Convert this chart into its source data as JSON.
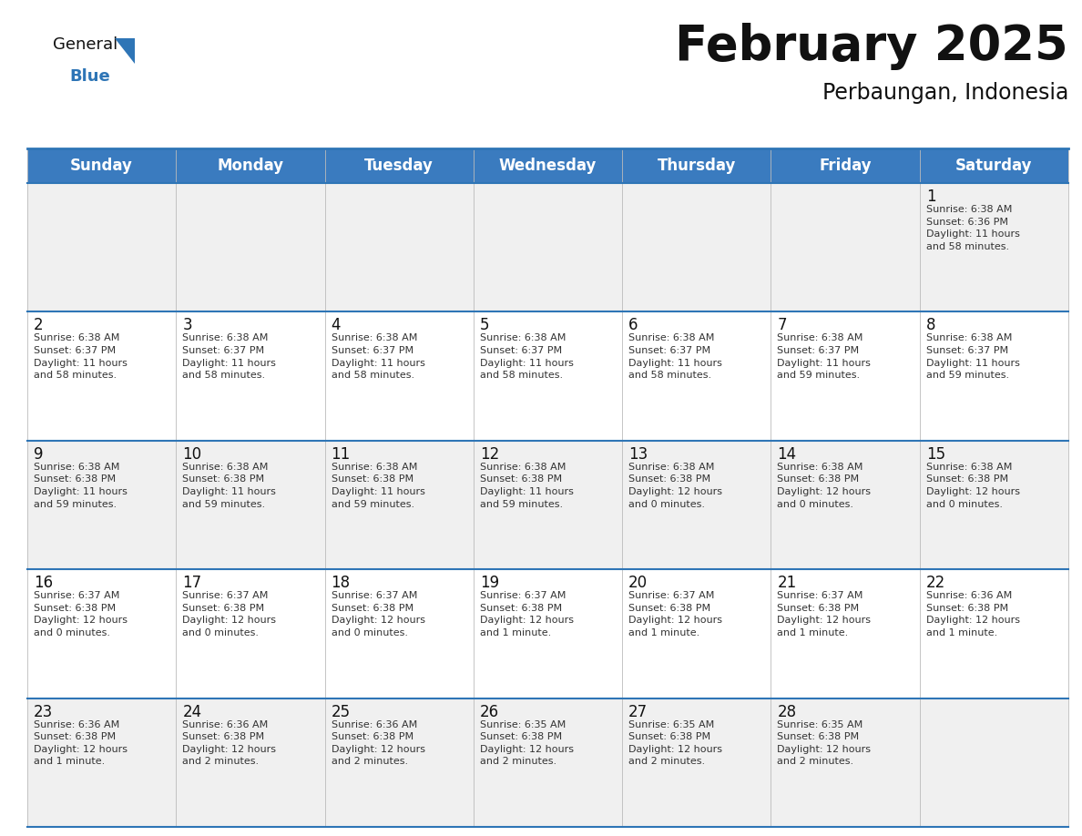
{
  "title": "February 2025",
  "subtitle": "Perbaungan, Indonesia",
  "header_bg": "#3a7bbf",
  "header_text_color": "#FFFFFF",
  "cell_bg": "#f0f0f0",
  "cell_bg_white": "#FFFFFF",
  "border_color": "#2E75B6",
  "row_line_color": "#2E75B6",
  "days_of_week": [
    "Sunday",
    "Monday",
    "Tuesday",
    "Wednesday",
    "Thursday",
    "Friday",
    "Saturday"
  ],
  "weeks": [
    [
      {
        "day": "",
        "text": ""
      },
      {
        "day": "",
        "text": ""
      },
      {
        "day": "",
        "text": ""
      },
      {
        "day": "",
        "text": ""
      },
      {
        "day": "",
        "text": ""
      },
      {
        "day": "",
        "text": ""
      },
      {
        "day": "1",
        "text": "Sunrise: 6:38 AM\nSunset: 6:36 PM\nDaylight: 11 hours\nand 58 minutes."
      }
    ],
    [
      {
        "day": "2",
        "text": "Sunrise: 6:38 AM\nSunset: 6:37 PM\nDaylight: 11 hours\nand 58 minutes."
      },
      {
        "day": "3",
        "text": "Sunrise: 6:38 AM\nSunset: 6:37 PM\nDaylight: 11 hours\nand 58 minutes."
      },
      {
        "day": "4",
        "text": "Sunrise: 6:38 AM\nSunset: 6:37 PM\nDaylight: 11 hours\nand 58 minutes."
      },
      {
        "day": "5",
        "text": "Sunrise: 6:38 AM\nSunset: 6:37 PM\nDaylight: 11 hours\nand 58 minutes."
      },
      {
        "day": "6",
        "text": "Sunrise: 6:38 AM\nSunset: 6:37 PM\nDaylight: 11 hours\nand 58 minutes."
      },
      {
        "day": "7",
        "text": "Sunrise: 6:38 AM\nSunset: 6:37 PM\nDaylight: 11 hours\nand 59 minutes."
      },
      {
        "day": "8",
        "text": "Sunrise: 6:38 AM\nSunset: 6:37 PM\nDaylight: 11 hours\nand 59 minutes."
      }
    ],
    [
      {
        "day": "9",
        "text": "Sunrise: 6:38 AM\nSunset: 6:38 PM\nDaylight: 11 hours\nand 59 minutes."
      },
      {
        "day": "10",
        "text": "Sunrise: 6:38 AM\nSunset: 6:38 PM\nDaylight: 11 hours\nand 59 minutes."
      },
      {
        "day": "11",
        "text": "Sunrise: 6:38 AM\nSunset: 6:38 PM\nDaylight: 11 hours\nand 59 minutes."
      },
      {
        "day": "12",
        "text": "Sunrise: 6:38 AM\nSunset: 6:38 PM\nDaylight: 11 hours\nand 59 minutes."
      },
      {
        "day": "13",
        "text": "Sunrise: 6:38 AM\nSunset: 6:38 PM\nDaylight: 12 hours\nand 0 minutes."
      },
      {
        "day": "14",
        "text": "Sunrise: 6:38 AM\nSunset: 6:38 PM\nDaylight: 12 hours\nand 0 minutes."
      },
      {
        "day": "15",
        "text": "Sunrise: 6:38 AM\nSunset: 6:38 PM\nDaylight: 12 hours\nand 0 minutes."
      }
    ],
    [
      {
        "day": "16",
        "text": "Sunrise: 6:37 AM\nSunset: 6:38 PM\nDaylight: 12 hours\nand 0 minutes."
      },
      {
        "day": "17",
        "text": "Sunrise: 6:37 AM\nSunset: 6:38 PM\nDaylight: 12 hours\nand 0 minutes."
      },
      {
        "day": "18",
        "text": "Sunrise: 6:37 AM\nSunset: 6:38 PM\nDaylight: 12 hours\nand 0 minutes."
      },
      {
        "day": "19",
        "text": "Sunrise: 6:37 AM\nSunset: 6:38 PM\nDaylight: 12 hours\nand 1 minute."
      },
      {
        "day": "20",
        "text": "Sunrise: 6:37 AM\nSunset: 6:38 PM\nDaylight: 12 hours\nand 1 minute."
      },
      {
        "day": "21",
        "text": "Sunrise: 6:37 AM\nSunset: 6:38 PM\nDaylight: 12 hours\nand 1 minute."
      },
      {
        "day": "22",
        "text": "Sunrise: 6:36 AM\nSunset: 6:38 PM\nDaylight: 12 hours\nand 1 minute."
      }
    ],
    [
      {
        "day": "23",
        "text": "Sunrise: 6:36 AM\nSunset: 6:38 PM\nDaylight: 12 hours\nand 1 minute."
      },
      {
        "day": "24",
        "text": "Sunrise: 6:36 AM\nSunset: 6:38 PM\nDaylight: 12 hours\nand 2 minutes."
      },
      {
        "day": "25",
        "text": "Sunrise: 6:36 AM\nSunset: 6:38 PM\nDaylight: 12 hours\nand 2 minutes."
      },
      {
        "day": "26",
        "text": "Sunrise: 6:35 AM\nSunset: 6:38 PM\nDaylight: 12 hours\nand 2 minutes."
      },
      {
        "day": "27",
        "text": "Sunrise: 6:35 AM\nSunset: 6:38 PM\nDaylight: 12 hours\nand 2 minutes."
      },
      {
        "day": "28",
        "text": "Sunrise: 6:35 AM\nSunset: 6:38 PM\nDaylight: 12 hours\nand 2 minutes."
      },
      {
        "day": "",
        "text": ""
      }
    ]
  ],
  "logo_triangle_color": "#2E75B6",
  "title_fontsize": 38,
  "subtitle_fontsize": 17,
  "header_fontsize": 12,
  "day_num_fontsize": 11,
  "cell_text_fontsize": 8,
  "background_color": "#FFFFFF",
  "title_color": "#111111",
  "subtitle_color": "#111111"
}
